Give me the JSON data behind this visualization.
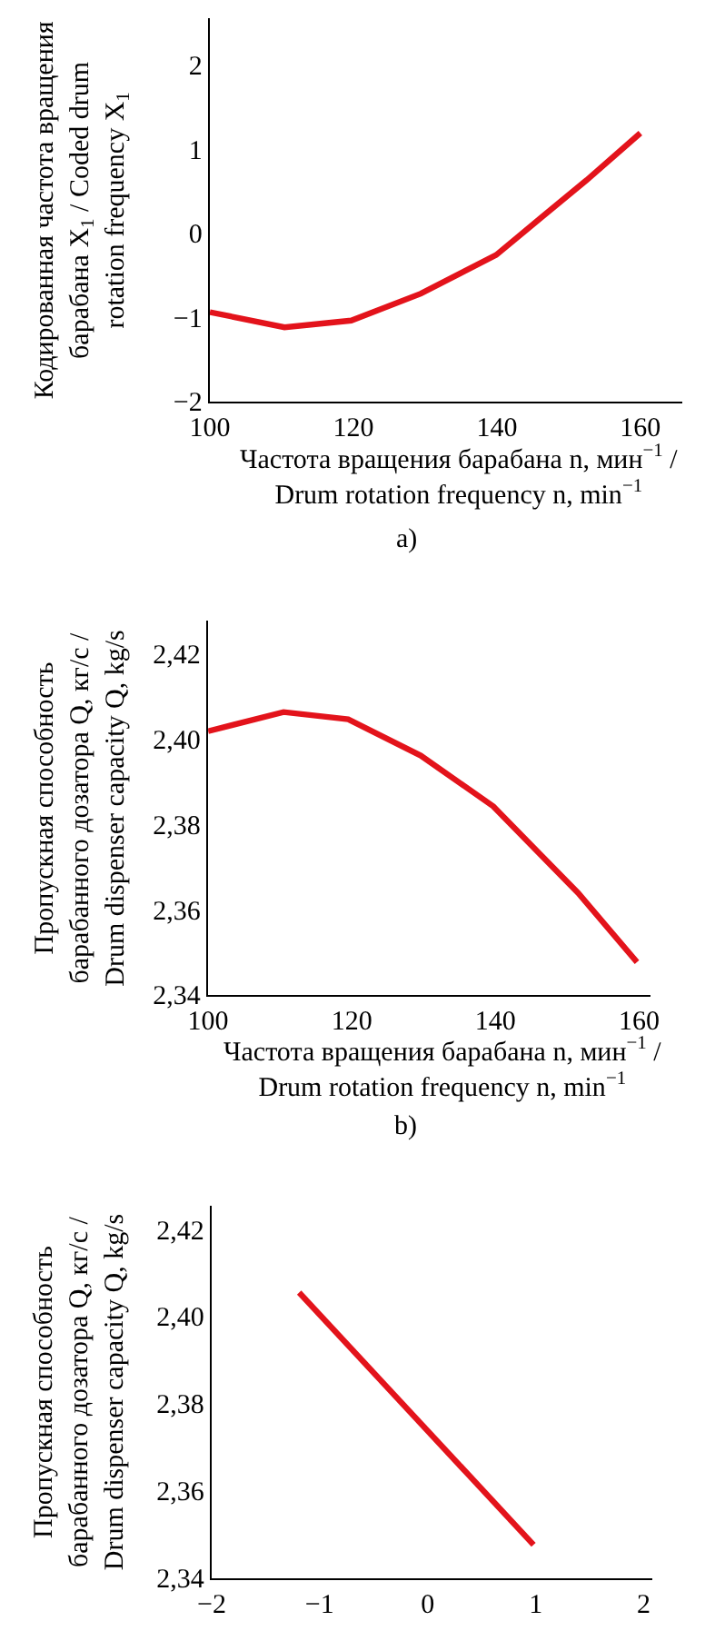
{
  "chart_data": [
    {
      "type": "line",
      "xlabel": "Частота вращения барабана n, мин$^{−1}$ / Drum rotation frequency n, min$^{−1}$",
      "ylabel": "Кодированная частота вращения барабана X$_{1}$ / Coded drum rotation frequency X$_{1}$",
      "annotations": [
        "a)"
      ],
      "x": [
        100,
        110.4,
        119.7,
        129.4,
        139.9,
        146.4,
        152.5,
        160
      ],
      "series": [
        {
          "color": "#e3131b",
          "values": [
            -0.94,
            -1.12,
            -1.04,
            -0.72,
            -0.26,
            0.2,
            0.63,
            1.19
          ]
        }
      ],
      "xlim": [
        100,
        165.8
      ],
      "xticks": [
        100,
        120,
        140,
        160
      ],
      "ylim": [
        -2,
        2.56
      ],
      "yticks": [
        {
          "value": -2,
          "label": "−2"
        },
        {
          "value": -1,
          "label": "−1"
        },
        0,
        1,
        2
      ]
    },
    {
      "type": "line",
      "xlabel": "Частота вращения барабана n, мин$^{−1}$ / Drum rotation frequency n, min$^{−1}$",
      "ylabel": "Пропускная способность барабанного дозатора Q, кг/с / Drum dispenser capacity Q, kg/s",
      "annotations": [
        "b)"
      ],
      "x": [
        100,
        110.5,
        119.5,
        129.6,
        139.7,
        145.8,
        151.5,
        159.7
      ],
      "series": [
        {
          "color": "#e3131b",
          "values": [
            2.4018,
            2.4063,
            2.4046,
            2.3961,
            2.3842,
            2.3737,
            2.3639,
            2.3477
          ]
        }
      ],
      "xlim": [
        100,
        161.6
      ],
      "xticks": [
        100,
        120,
        140,
        160
      ],
      "ylim": [
        2.34,
        2.4277
      ],
      "yticks": [
        {
          "value": 2.34,
          "label": "2,34"
        },
        {
          "value": 2.36,
          "label": "2,36"
        },
        {
          "value": 2.38,
          "label": "2,38"
        },
        {
          "value": 2.4,
          "label": "2,40"
        },
        {
          "value": 2.42,
          "label": "2,42"
        }
      ]
    },
    {
      "type": "line",
      "ylabel": "Пропускная способность барабанного дозатора Q, кг/с / Drum dispenser capacity Q, kg/s",
      "x": [
        -1.19,
        0.98
      ],
      "series": [
        {
          "color": "#e3131b",
          "values": [
            2.4055,
            2.3476
          ]
        }
      ],
      "xlim": [
        -2,
        2.08
      ],
      "xticks": [
        {
          "value": -2,
          "label": "−2"
        },
        {
          "value": -1,
          "label": "−1"
        },
        0,
        1,
        2
      ],
      "ylim": [
        2.34,
        2.4255
      ],
      "yticks": [
        {
          "value": 2.34,
          "label": "2,34"
        },
        {
          "value": 2.36,
          "label": "2,36"
        },
        {
          "value": 2.38,
          "label": "2,38"
        },
        {
          "value": 2.4,
          "label": "2,40"
        },
        {
          "value": 2.42,
          "label": "2,42"
        }
      ]
    }
  ]
}
